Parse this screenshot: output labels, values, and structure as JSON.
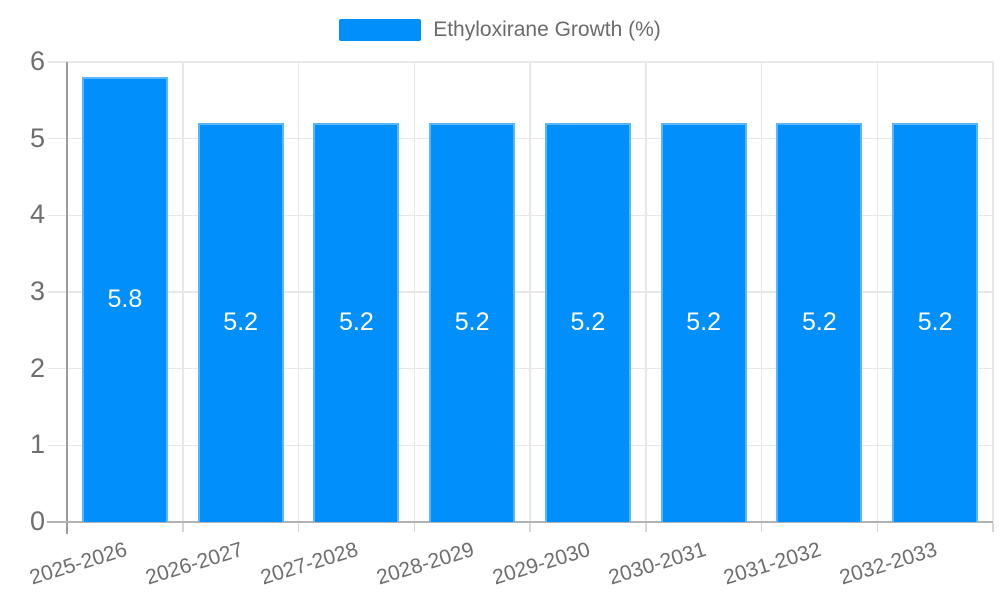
{
  "chart_data": {
    "type": "bar",
    "title": "Ethyloxirane Growth (%)",
    "series_name": "Ethyloxirane Growth (%)",
    "categories": [
      "2025-2026",
      "2026-2027",
      "2027-2028",
      "2028-2029",
      "2029-2030",
      "2030-2031",
      "2031-2032",
      "2032-2033"
    ],
    "values": [
      5.8,
      5.2,
      5.2,
      5.2,
      5.2,
      5.2,
      5.2,
      5.2
    ],
    "value_labels": [
      "5.8",
      "5.2",
      "5.2",
      "5.2",
      "5.2",
      "5.2",
      "5.2",
      "5.2"
    ],
    "xlabel": "",
    "ylabel": "",
    "ylim": [
      0,
      6
    ],
    "yticks": [
      0,
      1,
      2,
      3,
      4,
      5,
      6
    ],
    "grid": true,
    "legend_position": "top",
    "x_label_rotation_deg": -17,
    "colors": {
      "bar": "#008FFB",
      "bar_edge": "rgba(255,255,255,0.35)",
      "value_label": "#FFFFFF",
      "grid": "#E8E8E8",
      "y_axis_line": "#9C9C9C",
      "x_axis_line": "#B3B3B3",
      "axis_tick": "#D6D6D6",
      "tick_text": "#6E6E6E",
      "legend_text": "#6B6B6B"
    }
  }
}
